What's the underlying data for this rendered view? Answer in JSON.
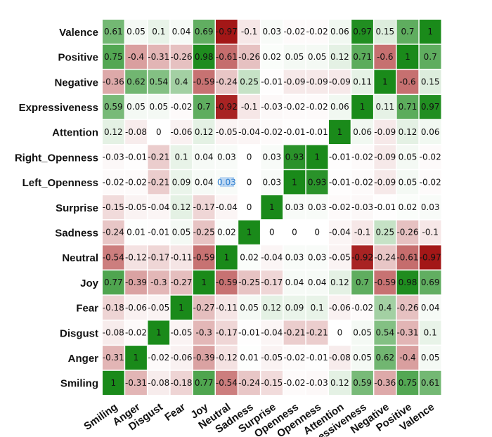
{
  "chart_data": {
    "type": "heatmap",
    "title": "",
    "xlabel": "",
    "ylabel": "",
    "value_range": [
      -1,
      1
    ],
    "colors": {
      "positive": "#1a8a1a",
      "negative": "#a01010",
      "zero": "#ffffff",
      "highlight": "#2f7fd0"
    },
    "rows": [
      "Valence",
      "Positive",
      "Negative",
      "Expressiveness",
      "Attention",
      "Right_Openness",
      "Left_Openness",
      "Surprise",
      "Sadness",
      "Neutral",
      "Joy",
      "Fear",
      "Disgust",
      "Anger",
      "Smiling"
    ],
    "columns": [
      "Smiling",
      "Anger",
      "Disgust",
      "Fear",
      "Joy",
      "Neutral",
      "Sadness",
      "Surprise",
      "Openness",
      "Openness",
      "Attention",
      "essiveness",
      "Negative",
      "Positive",
      "Valence"
    ],
    "values": [
      [
        0.61,
        0.05,
        0.1,
        0.04,
        0.69,
        -0.97,
        -0.1,
        0.03,
        -0.02,
        -0.02,
        0.06,
        0.97,
        0.15,
        0.7,
        1
      ],
      [
        0.75,
        -0.4,
        -0.31,
        -0.26,
        0.98,
        -0.61,
        -0.26,
        0.02,
        0.05,
        0.05,
        0.12,
        0.71,
        -0.6,
        1,
        0.7
      ],
      [
        -0.36,
        0.62,
        0.54,
        0.4,
        -0.59,
        -0.24,
        0.25,
        -0.01,
        -0.09,
        -0.09,
        -0.09,
        0.11,
        1,
        -0.6,
        0.15
      ],
      [
        0.59,
        0.05,
        0.05,
        -0.02,
        0.7,
        -0.92,
        -0.1,
        -0.03,
        -0.02,
        -0.02,
        0.06,
        1,
        0.11,
        0.71,
        0.97
      ],
      [
        0.12,
        -0.08,
        0,
        -0.06,
        0.12,
        -0.05,
        -0.04,
        -0.02,
        -0.01,
        -0.01,
        1,
        0.06,
        -0.09,
        0.12,
        0.06
      ],
      [
        -0.03,
        -0.01,
        -0.21,
        0.1,
        0.04,
        0.03,
        0,
        0.03,
        0.93,
        1,
        -0.01,
        -0.02,
        -0.09,
        0.05,
        -0.02
      ],
      [
        -0.02,
        -0.02,
        -0.21,
        0.09,
        0.04,
        0.03,
        0,
        0.03,
        1,
        0.93,
        -0.01,
        -0.02,
        -0.09,
        0.05,
        -0.02
      ],
      [
        -0.15,
        -0.05,
        -0.04,
        0.12,
        -0.17,
        -0.04,
        0,
        1,
        0.03,
        0.03,
        -0.02,
        -0.03,
        -0.01,
        0.02,
        0.03
      ],
      [
        -0.24,
        0.01,
        -0.01,
        0.05,
        -0.25,
        0.02,
        1,
        0,
        0,
        0,
        -0.04,
        -0.1,
        0.25,
        -0.26,
        -0.1
      ],
      [
        -0.54,
        -0.12,
        -0.17,
        -0.11,
        -0.59,
        1,
        0.02,
        -0.04,
        0.03,
        0.03,
        -0.05,
        -0.92,
        -0.24,
        -0.61,
        -0.97
      ],
      [
        0.77,
        -0.39,
        -0.3,
        -0.27,
        1,
        -0.59,
        -0.25,
        -0.17,
        0.04,
        0.04,
        0.12,
        0.7,
        -0.59,
        0.98,
        0.69
      ],
      [
        -0.18,
        -0.06,
        -0.05,
        1,
        -0.27,
        -0.11,
        0.05,
        0.12,
        0.09,
        0.1,
        -0.06,
        -0.02,
        0.4,
        -0.26,
        0.04
      ],
      [
        -0.08,
        -0.02,
        1,
        -0.05,
        -0.3,
        -0.17,
        -0.01,
        -0.04,
        -0.21,
        -0.21,
        0,
        0.05,
        0.54,
        -0.31,
        0.1
      ],
      [
        -0.31,
        1,
        -0.02,
        -0.06,
        -0.39,
        -0.12,
        0.01,
        -0.05,
        -0.02,
        -0.01,
        -0.08,
        0.05,
        0.62,
        -0.4,
        0.05
      ],
      [
        1,
        -0.31,
        -0.08,
        -0.18,
        0.77,
        -0.54,
        -0.24,
        -0.15,
        -0.02,
        -0.03,
        0.12,
        0.59,
        -0.36,
        0.75,
        0.61
      ]
    ],
    "highlighted_cells": [
      [
        6,
        5
      ]
    ]
  }
}
